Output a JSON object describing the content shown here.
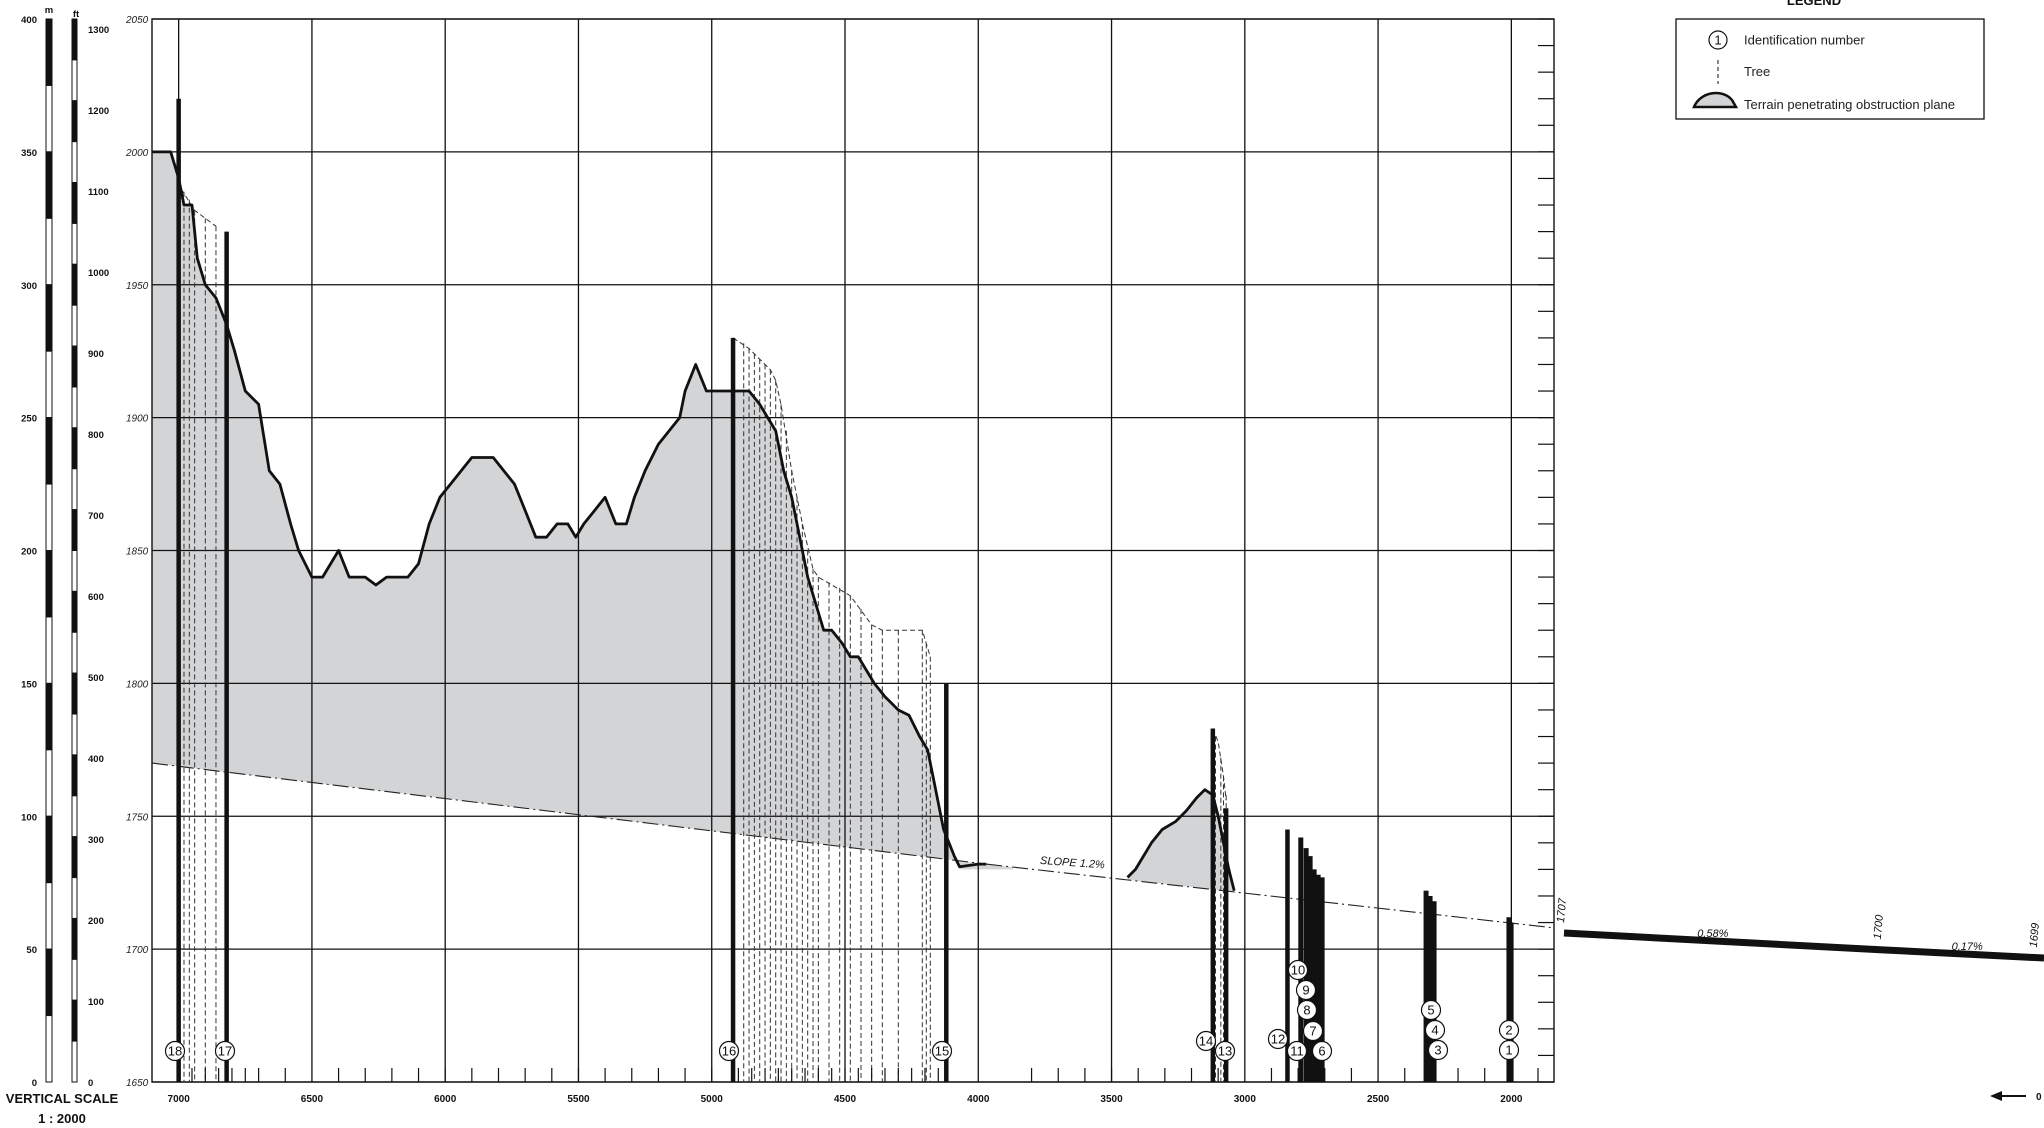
{
  "chart_data": {
    "type": "terrain-profile",
    "x_range": [
      7100,
      1840
    ],
    "y_range": [
      1650,
      2050
    ],
    "x_ticks": [
      7000,
      6500,
      6000,
      5500,
      5000,
      4500,
      4000,
      3500,
      3000,
      2500,
      2000
    ],
    "y_ticks": [
      1650,
      1700,
      1750,
      1800,
      1850,
      1900,
      1950,
      2000,
      2050
    ],
    "terrain_main": [
      [
        7100,
        2000
      ],
      [
        7030,
        2000
      ],
      [
        7000,
        1990
      ],
      [
        6980,
        1980
      ],
      [
        6950,
        1980
      ],
      [
        6930,
        1960
      ],
      [
        6900,
        1950
      ],
      [
        6860,
        1945
      ],
      [
        6820,
        1935
      ],
      [
        6790,
        1925
      ],
      [
        6750,
        1910
      ],
      [
        6700,
        1905
      ],
      [
        6660,
        1880
      ],
      [
        6620,
        1875
      ],
      [
        6580,
        1860
      ],
      [
        6550,
        1850
      ],
      [
        6500,
        1840
      ],
      [
        6460,
        1840
      ],
      [
        6400,
        1850
      ],
      [
        6360,
        1840
      ],
      [
        6300,
        1840
      ],
      [
        6260,
        1837
      ],
      [
        6220,
        1840
      ],
      [
        6170,
        1840
      ],
      [
        6140,
        1840
      ],
      [
        6100,
        1845
      ],
      [
        6060,
        1860
      ],
      [
        6020,
        1870
      ],
      [
        5980,
        1875
      ],
      [
        5940,
        1880
      ],
      [
        5900,
        1885
      ],
      [
        5860,
        1885
      ],
      [
        5820,
        1885
      ],
      [
        5780,
        1880
      ],
      [
        5740,
        1875
      ],
      [
        5700,
        1865
      ],
      [
        5660,
        1855
      ],
      [
        5620,
        1855
      ],
      [
        5580,
        1860
      ],
      [
        5540,
        1860
      ],
      [
        5510,
        1855
      ],
      [
        5480,
        1860
      ],
      [
        5440,
        1865
      ],
      [
        5400,
        1870
      ],
      [
        5360,
        1860
      ],
      [
        5320,
        1860
      ],
      [
        5290,
        1870
      ],
      [
        5250,
        1880
      ],
      [
        5200,
        1890
      ],
      [
        5160,
        1895
      ],
      [
        5120,
        1900
      ],
      [
        5100,
        1910
      ],
      [
        5060,
        1920
      ],
      [
        5020,
        1910
      ],
      [
        4980,
        1910
      ],
      [
        4940,
        1910
      ],
      [
        4900,
        1910
      ],
      [
        4860,
        1910
      ],
      [
        4820,
        1905
      ],
      [
        4790,
        1900
      ],
      [
        4760,
        1895
      ],
      [
        4730,
        1880
      ],
      [
        4700,
        1870
      ],
      [
        4670,
        1855
      ],
      [
        4640,
        1840
      ],
      [
        4610,
        1830
      ],
      [
        4580,
        1820
      ],
      [
        4550,
        1820
      ],
      [
        4510,
        1815
      ],
      [
        4480,
        1810
      ],
      [
        4450,
        1810
      ],
      [
        4420,
        1805
      ],
      [
        4390,
        1800
      ],
      [
        4350,
        1795
      ],
      [
        4300,
        1790
      ],
      [
        4260,
        1788
      ],
      [
        4220,
        1780
      ],
      [
        4190,
        1775
      ],
      [
        4170,
        1765
      ],
      [
        4150,
        1755
      ],
      [
        4130,
        1745
      ],
      [
        4110,
        1740
      ],
      [
        4090,
        1735
      ],
      [
        4080,
        1732
      ],
      [
        4070,
        1730
      ],
      [
        4050,
        1730
      ],
      [
        4030,
        1730
      ],
      [
        4010,
        1730
      ],
      [
        3990,
        1730
      ],
      [
        3970,
        1730
      ],
      [
        3950,
        1730
      ],
      [
        3930,
        1730
      ],
      [
        3910,
        1730
      ],
      [
        3890,
        1730
      ],
      [
        3870,
        1730
      ]
    ],
    "terrain_main_line": [
      [
        7100,
        2000
      ],
      [
        7030,
        2000
      ],
      [
        7000,
        1990
      ],
      [
        6980,
        1980
      ],
      [
        6950,
        1980
      ],
      [
        6930,
        1960
      ],
      [
        6900,
        1950
      ],
      [
        6860,
        1945
      ],
      [
        6820,
        1935
      ],
      [
        6790,
        1925
      ],
      [
        6750,
        1910
      ],
      [
        6700,
        1905
      ],
      [
        6660,
        1880
      ],
      [
        6620,
        1875
      ],
      [
        6580,
        1860
      ],
      [
        6550,
        1850
      ],
      [
        6500,
        1840
      ],
      [
        6460,
        1840
      ],
      [
        6400,
        1850
      ],
      [
        6360,
        1840
      ],
      [
        6300,
        1840
      ],
      [
        6260,
        1837
      ],
      [
        6220,
        1840
      ],
      [
        6170,
        1840
      ],
      [
        6140,
        1840
      ],
      [
        6100,
        1845
      ],
      [
        6060,
        1860
      ],
      [
        6020,
        1870
      ],
      [
        5980,
        1875
      ],
      [
        5940,
        1880
      ],
      [
        5900,
        1885
      ],
      [
        5860,
        1885
      ],
      [
        5820,
        1885
      ],
      [
        5780,
        1880
      ],
      [
        5740,
        1875
      ],
      [
        5700,
        1865
      ],
      [
        5660,
        1855
      ],
      [
        5620,
        1855
      ],
      [
        5580,
        1860
      ],
      [
        5540,
        1860
      ],
      [
        5510,
        1855
      ],
      [
        5480,
        1860
      ],
      [
        5440,
        1865
      ],
      [
        5400,
        1870
      ],
      [
        5360,
        1860
      ],
      [
        5320,
        1860
      ],
      [
        5290,
        1870
      ],
      [
        5250,
        1880
      ],
      [
        5200,
        1890
      ],
      [
        5160,
        1895
      ],
      [
        5120,
        1900
      ],
      [
        5100,
        1910
      ],
      [
        5060,
        1920
      ],
      [
        5020,
        1910
      ],
      [
        4980,
        1910
      ],
      [
        4940,
        1910
      ],
      [
        4900,
        1910
      ],
      [
        4860,
        1910
      ],
      [
        4820,
        1905
      ],
      [
        4790,
        1900
      ],
      [
        4760,
        1895
      ],
      [
        4730,
        1880
      ],
      [
        4700,
        1870
      ],
      [
        4670,
        1855
      ],
      [
        4640,
        1840
      ],
      [
        4610,
        1830
      ],
      [
        4580,
        1820
      ],
      [
        4550,
        1820
      ],
      [
        4510,
        1815
      ],
      [
        4480,
        1810
      ],
      [
        4450,
        1810
      ],
      [
        4420,
        1805
      ],
      [
        4390,
        1800
      ],
      [
        4350,
        1795
      ],
      [
        4300,
        1790
      ],
      [
        4260,
        1788
      ],
      [
        4220,
        1780
      ],
      [
        4190,
        1775
      ],
      [
        4170,
        1765
      ],
      [
        4150,
        1755
      ],
      [
        4130,
        1745
      ],
      [
        4110,
        1740
      ],
      [
        4090,
        1735
      ],
      [
        4070,
        1731
      ],
      [
        4000,
        1732
      ],
      [
        3970,
        1732
      ]
    ],
    "terrain_small": [
      [
        3440,
        1727
      ],
      [
        3410,
        1730
      ],
      [
        3380,
        1735
      ],
      [
        3350,
        1740
      ],
      [
        3310,
        1745
      ],
      [
        3260,
        1748
      ],
      [
        3220,
        1752
      ],
      [
        3180,
        1757
      ],
      [
        3150,
        1760
      ],
      [
        3120,
        1758
      ],
      [
        3100,
        1750
      ],
      [
        3080,
        1740
      ],
      [
        3060,
        1730
      ],
      [
        3040,
        1722
      ]
    ],
    "obstruction_plane": [
      [
        7100,
        1770
      ],
      [
        3970,
        1732
      ]
    ],
    "obstruction_slope": [
      [
        3970,
        1732
      ],
      [
        2000,
        1710
      ],
      [
        1840,
        1708
      ]
    ],
    "slope_label": "SLOPE 1.2%",
    "obstacles": [
      {
        "id": "18",
        "x": 7000,
        "top": 2020
      },
      {
        "id": "17",
        "x": 6820,
        "top": 1970
      },
      {
        "id": "16",
        "x": 4920,
        "top": 1930
      },
      {
        "id": "15",
        "x": 4120,
        "top": 1800
      },
      {
        "id": "14",
        "x": 3120,
        "top": 1783
      },
      {
        "id": "13",
        "x": 3070,
        "top": 1753
      },
      {
        "id": "12",
        "x": 2840,
        "top": 1745
      },
      {
        "id": "11",
        "x": 2790,
        "top": 1742
      },
      {
        "id": "10",
        "x": 2770,
        "top": 1738
      },
      {
        "id": "9",
        "x": 2755,
        "top": 1735
      },
      {
        "id": "8",
        "x": 2740,
        "top": 1730
      },
      {
        "id": "7",
        "x": 2725,
        "top": 1728
      },
      {
        "id": "6",
        "x": 2710,
        "top": 1727
      },
      {
        "id": "5",
        "x": 2320,
        "top": 1722
      },
      {
        "id": "4",
        "x": 2305,
        "top": 1720
      },
      {
        "id": "3",
        "x": 2290,
        "top": 1718
      },
      {
        "id": "2",
        "x": 2010,
        "top": 1712
      },
      {
        "id": "1",
        "x": 2000,
        "top": 1710
      }
    ],
    "tree_lines": [
      {
        "x": 6980,
        "top": 1985
      },
      {
        "x": 6960,
        "top": 1982
      },
      {
        "x": 6940,
        "top": 1978
      },
      {
        "x": 6900,
        "top": 1975
      },
      {
        "x": 6860,
        "top": 1972
      },
      {
        "x": 4880,
        "top": 1928
      },
      {
        "x": 4860,
        "top": 1926
      },
      {
        "x": 4840,
        "top": 1924
      },
      {
        "x": 4820,
        "top": 1922
      },
      {
        "x": 4800,
        "top": 1920
      },
      {
        "x": 4780,
        "top": 1918
      },
      {
        "x": 4760,
        "top": 1914
      },
      {
        "x": 4740,
        "top": 1905
      },
      {
        "x": 4720,
        "top": 1895
      },
      {
        "x": 4700,
        "top": 1880
      },
      {
        "x": 4680,
        "top": 1870
      },
      {
        "x": 4660,
        "top": 1860
      },
      {
        "x": 4640,
        "top": 1850
      },
      {
        "x": 4620,
        "top": 1843
      },
      {
        "x": 4600,
        "top": 1840
      },
      {
        "x": 4560,
        "top": 1838
      },
      {
        "x": 4520,
        "top": 1836
      },
      {
        "x": 4480,
        "top": 1833
      },
      {
        "x": 4440,
        "top": 1828
      },
      {
        "x": 4400,
        "top": 1822
      },
      {
        "x": 4360,
        "top": 1820
      },
      {
        "x": 4300,
        "top": 1820
      },
      {
        "x": 4210,
        "top": 1820
      },
      {
        "x": 4195,
        "top": 1815
      },
      {
        "x": 4180,
        "top": 1810
      },
      {
        "x": 3110,
        "top": 1780
      },
      {
        "x": 3090,
        "top": 1772
      },
      {
        "x": 3080,
        "top": 1765
      },
      {
        "x": 3070,
        "top": 1758
      }
    ],
    "bottom_tick_x": [
      6950,
      6900,
      6850,
      6800,
      6750,
      6700,
      6600,
      6400,
      6300,
      6200,
      6100,
      6000,
      5900,
      5800,
      5700,
      5600,
      5500,
      5400,
      5300,
      5200,
      5100,
      5000,
      4900,
      4850,
      4800,
      4750,
      4700,
      4650,
      4600,
      4550,
      4500,
      4450,
      4400,
      4350,
      4300,
      4250,
      4200,
      4150,
      3800,
      3700,
      3600,
      3500,
      3400,
      3300,
      3200,
      3100,
      2900,
      2800,
      2750,
      2700,
      2600,
      2400,
      2300,
      2200,
      2100,
      1900
    ],
    "right_profile": {
      "labels": [
        {
          "text": "1707",
          "pos": 0.0,
          "rotate": true
        },
        {
          "text": "0.58%",
          "pos": 0.31,
          "rotate": false
        },
        {
          "text": "1700",
          "pos": 0.66,
          "rotate": true
        },
        {
          "text": "0.17%",
          "pos": 0.84,
          "rotate": false
        },
        {
          "text": "1699",
          "pos": 0.985,
          "rotate": true
        }
      ],
      "arrow_label": "0"
    }
  },
  "vertical_scale": {
    "title": "VERTICAL SCALE",
    "ratio": "1 : 2000",
    "m_unit": "m",
    "ft_unit": "ft",
    "m_ticks": [
      "400",
      "350",
      "300",
      "250",
      "200",
      "150",
      "100",
      "50",
      "0"
    ],
    "ft_ticks": [
      "1300",
      "1200",
      "1100",
      "1000",
      "900",
      "800",
      "700",
      "600",
      "500",
      "400",
      "300",
      "200",
      "100",
      "0"
    ]
  },
  "legend": {
    "title": "LEGEND",
    "items": [
      {
        "symbol": "1",
        "label": "Identification number"
      },
      {
        "symbol": "tree",
        "label": "Tree"
      },
      {
        "symbol": "terrain",
        "label": "Terrain penetrating obstruction plane"
      }
    ]
  }
}
